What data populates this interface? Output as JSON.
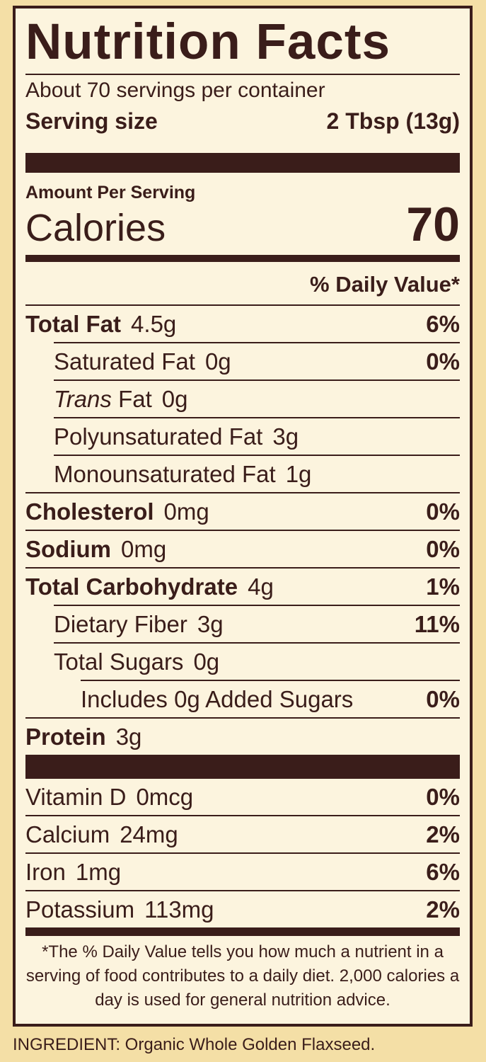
{
  "label": {
    "title": "Nutrition Facts",
    "servings": "About 70 servings per container",
    "serving_size": {
      "label": "Serving size",
      "value": "2 Tbsp (13g)"
    },
    "amount_per_serving": "Amount Per Serving",
    "calories": {
      "label": "Calories",
      "value": "70"
    },
    "dv_header": "% Daily Value*",
    "rows": [
      {
        "name": "Total Fat",
        "amount": "4.5g",
        "dv": "6%"
      },
      {
        "name": "Saturated Fat",
        "amount": "0g",
        "dv": "0%"
      },
      {
        "name_prefix": "Trans",
        "name": "Fat",
        "amount": "0g"
      },
      {
        "name": "Polyunsaturated Fat",
        "amount": "3g"
      },
      {
        "name": "Monounsaturated Fat",
        "amount": "1g"
      },
      {
        "name": "Cholesterol",
        "amount": "0mg",
        "dv": "0%"
      },
      {
        "name": "Sodium",
        "amount": "0mg",
        "dv": "0%"
      },
      {
        "name": "Total Carbohydrate",
        "amount": "4g",
        "dv": "1%"
      },
      {
        "name": "Dietary Fiber",
        "amount": "3g",
        "dv": "11%"
      },
      {
        "name": "Total Sugars",
        "amount": "0g"
      },
      {
        "name": "Includes 0g Added Sugars",
        "dv": "0%"
      },
      {
        "name": "Protein",
        "amount": "3g"
      }
    ],
    "vitamins": [
      {
        "name": "Vitamin D",
        "amount": "0mcg",
        "dv": "0%"
      },
      {
        "name": "Calcium",
        "amount": "24mg",
        "dv": "2%"
      },
      {
        "name": "Iron",
        "amount": "1mg",
        "dv": "6%"
      },
      {
        "name": "Potassium",
        "amount": "113mg",
        "dv": "2%"
      }
    ],
    "footnote": "*The % Daily Value tells you how much a nutrient in a serving of food contributes to a daily diet. 2,000 calories a day is used for general nutrition advice."
  },
  "ingredients": "INGREDIENT: Organic Whole Golden Flaxseed."
}
